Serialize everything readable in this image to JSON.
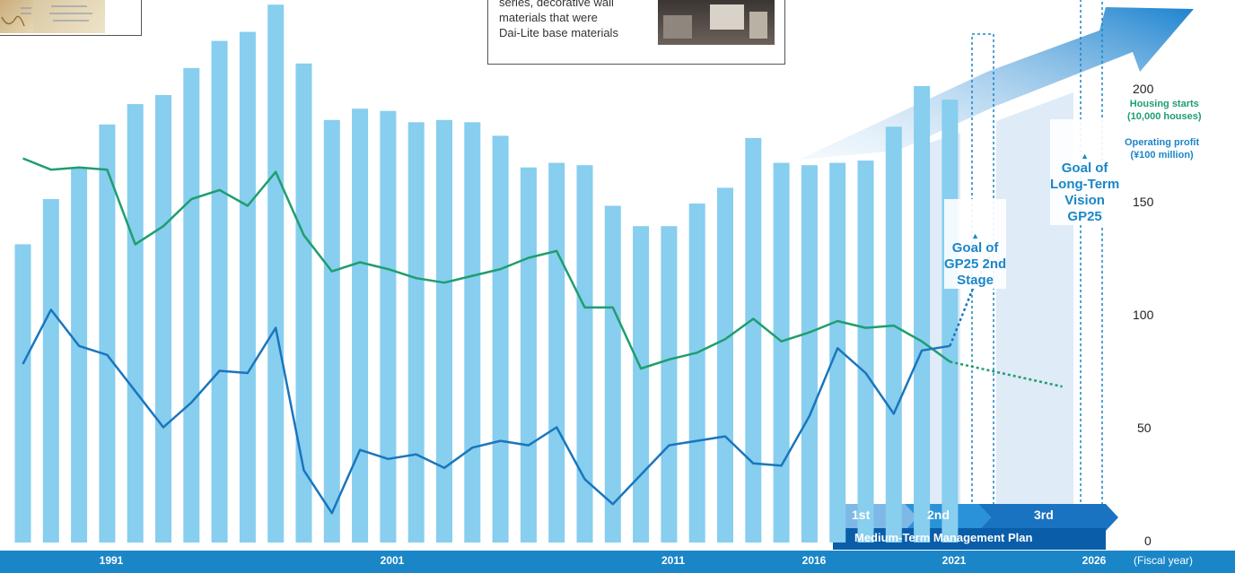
{
  "callout_right": {
    "text": "series, decorative wall\nmaterials that were\nDai-Lite base materials"
  },
  "goals": {
    "stage2": "Goal of\nGP25 2nd\nStage",
    "longterm": "Goal of\nLong-Term\nVision\nGP25"
  },
  "legend": {
    "housing": "Housing starts\n(10,000 houses)",
    "profit": "Operating profit\n(¥100 million)"
  },
  "y_ticks": [
    "200",
    "150",
    "100",
    "50",
    "0"
  ],
  "x_labels": [
    "1991",
    "2001",
    "2011",
    "2016",
    "2021",
    "2026"
  ],
  "x_unit": "(Fiscal year)",
  "plan": {
    "title": "Medium-Term Management Plan",
    "phases": [
      "1st",
      "2nd",
      "3rd"
    ]
  },
  "colors": {
    "bars": "#87ceef",
    "housing_line": "#1f9e6e",
    "profit_line": "#1a76bc",
    "accent": "#1a86c8"
  },
  "chart_data": {
    "type": "bar",
    "x": [
      1988,
      1989,
      1990,
      1991,
      1992,
      1993,
      1994,
      1995,
      1996,
      1997,
      1998,
      1999,
      2000,
      2001,
      2002,
      2003,
      2004,
      2005,
      2006,
      2007,
      2008,
      2009,
      2010,
      2011,
      2012,
      2013,
      2014,
      2015,
      2016,
      2017,
      2018,
      2019,
      2020,
      2021
    ],
    "ylim": [
      0,
      235
    ],
    "series": [
      {
        "name": "bars",
        "type": "bar",
        "values": [
          132,
          152,
          166,
          185,
          194,
          198,
          210,
          222,
          226,
          238,
          212,
          187,
          192,
          191,
          186,
          187,
          186,
          180,
          166,
          168,
          167,
          149,
          140,
          140,
          150,
          157,
          179,
          168,
          167,
          168,
          169,
          184,
          202,
          196
        ]
      },
      {
        "name": "Housing starts",
        "type": "line",
        "values": [
          170,
          165,
          166,
          165,
          132,
          140,
          152,
          156,
          149,
          164,
          136,
          120,
          124,
          121,
          117,
          115,
          118,
          121,
          126,
          129,
          104,
          104,
          77,
          81,
          84,
          90,
          99,
          89,
          93,
          98,
          95,
          96,
          89,
          80
        ]
      },
      {
        "name": "Operating profit",
        "type": "line",
        "values": [
          79,
          103,
          87,
          83,
          67,
          51,
          62,
          76,
          75,
          95,
          32,
          13,
          41,
          37,
          39,
          33,
          42,
          45,
          43,
          51,
          28,
          17,
          30,
          43,
          45,
          47,
          35,
          34,
          56,
          86,
          75,
          57,
          85,
          87
        ]
      }
    ],
    "housing_projection": [
      [
        2021,
        80
      ],
      [
        2025,
        69
      ]
    ],
    "profit_projection": [
      [
        2021,
        87
      ],
      [
        2021.9,
        115
      ]
    ]
  }
}
